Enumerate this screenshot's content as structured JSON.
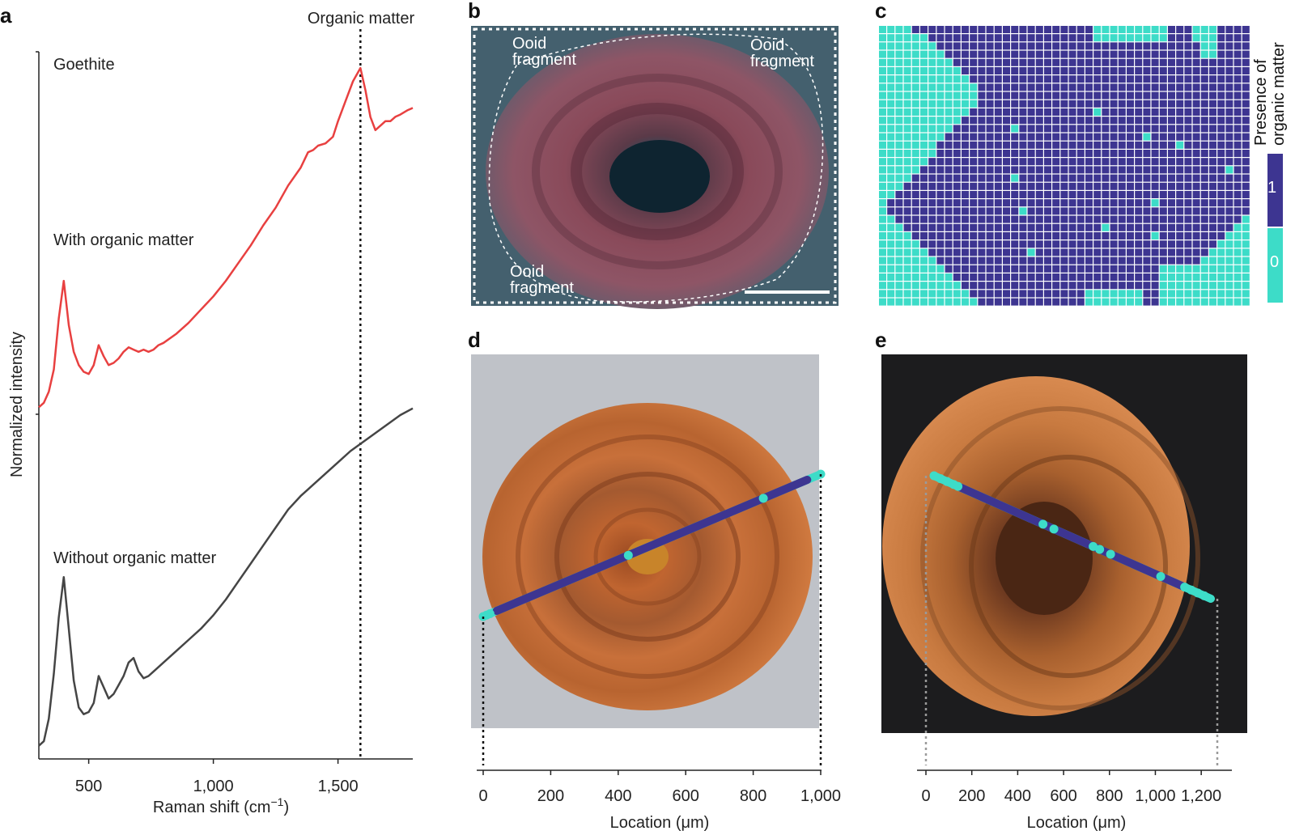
{
  "panel_labels": {
    "a": "a",
    "b": "b",
    "c": "c",
    "d": "d",
    "e": "e"
  },
  "colors": {
    "with_organic": "#e84040",
    "without_organic": "#454545",
    "organic_present": "#3d3591",
    "organic_absent": "#3ddcc8"
  },
  "chart_data": [
    {
      "panel": "a",
      "type": "line",
      "xlabel": "Raman shift (cm",
      "xlabel_sup": "−1",
      "xlabel_close": ")",
      "ylabel": "Normalized intensity",
      "xlim": [
        300,
        1800
      ],
      "xticks": [
        500,
        1000,
        1500
      ],
      "xtick_labels": [
        "500",
        "1,000",
        "1,500"
      ],
      "reference_line": {
        "x": 1590,
        "label": "Organic matter"
      },
      "annotations": [
        "Goethite",
        "With organic matter",
        "Without organic matter"
      ],
      "series": [
        {
          "name": "With organic matter",
          "x": [
            300,
            320,
            340,
            360,
            380,
            400,
            420,
            440,
            460,
            480,
            500,
            520,
            540,
            560,
            580,
            600,
            620,
            640,
            660,
            680,
            700,
            720,
            740,
            760,
            780,
            800,
            850,
            900,
            950,
            1000,
            1050,
            1100,
            1150,
            1200,
            1250,
            1300,
            1350,
            1380,
            1400,
            1420,
            1450,
            1480,
            1500,
            1530,
            1560,
            1590,
            1610,
            1630,
            1650,
            1670,
            1690,
            1710,
            1730,
            1750,
            1780,
            1800
          ],
          "y": [
            0.05,
            0.07,
            0.12,
            0.22,
            0.45,
            0.62,
            0.42,
            0.3,
            0.24,
            0.21,
            0.2,
            0.24,
            0.33,
            0.28,
            0.24,
            0.25,
            0.27,
            0.3,
            0.32,
            0.31,
            0.3,
            0.31,
            0.3,
            0.31,
            0.33,
            0.34,
            0.38,
            0.43,
            0.49,
            0.55,
            0.62,
            0.7,
            0.78,
            0.87,
            0.95,
            1.05,
            1.13,
            1.2,
            1.21,
            1.23,
            1.24,
            1.27,
            1.34,
            1.43,
            1.52,
            1.58,
            1.48,
            1.36,
            1.3,
            1.32,
            1.34,
            1.34,
            1.36,
            1.37,
            1.39,
            1.4
          ]
        },
        {
          "name": "Without organic matter",
          "x": [
            300,
            320,
            340,
            360,
            380,
            400,
            420,
            440,
            460,
            480,
            500,
            520,
            540,
            560,
            580,
            600,
            620,
            640,
            660,
            680,
            700,
            720,
            740,
            760,
            780,
            800,
            850,
            900,
            950,
            1000,
            1050,
            1100,
            1150,
            1200,
            1250,
            1300,
            1350,
            1400,
            1450,
            1500,
            1550,
            1600,
            1650,
            1700,
            1750,
            1800
          ],
          "y": [
            0.03,
            0.05,
            0.15,
            0.35,
            0.6,
            0.78,
            0.55,
            0.32,
            0.2,
            0.17,
            0.18,
            0.22,
            0.34,
            0.29,
            0.24,
            0.26,
            0.3,
            0.34,
            0.4,
            0.42,
            0.36,
            0.33,
            0.34,
            0.36,
            0.38,
            0.4,
            0.45,
            0.5,
            0.55,
            0.61,
            0.68,
            0.76,
            0.84,
            0.92,
            1.0,
            1.08,
            1.14,
            1.19,
            1.24,
            1.29,
            1.34,
            1.38,
            1.42,
            1.46,
            1.5,
            1.53
          ]
        }
      ]
    },
    {
      "panel": "c",
      "type": "heatmap",
      "colorbar_title": [
        "Presence of",
        "organic matter"
      ],
      "colorbar_values": [
        "1",
        "0"
      ],
      "grid_size": [
        45,
        34
      ],
      "present_value": 1,
      "absent_value": 0
    },
    {
      "panel": "d",
      "type": "line",
      "xlabel": "Location (μm)",
      "xlim": [
        0,
        1000
      ],
      "xticks": [
        0,
        200,
        400,
        600,
        800,
        1000
      ],
      "xtick_labels": [
        "0",
        "200",
        "400",
        "600",
        "800",
        "1,000"
      ],
      "absent_points": [
        0,
        10,
        20,
        430,
        830,
        1000
      ],
      "present_segment": [
        40,
        960
      ]
    },
    {
      "panel": "e",
      "type": "line",
      "xlabel": "Location (μm)",
      "xlim": [
        0,
        1270
      ],
      "xticks": [
        0,
        200,
        400,
        600,
        800,
        1000,
        1200
      ],
      "xtick_labels": [
        "0",
        "200",
        "400",
        "600",
        "800",
        "1,000",
        "1,200"
      ],
      "absent_points": [
        0,
        30,
        60,
        90,
        110,
        500,
        550,
        730,
        760,
        810,
        1040,
        1150,
        1180,
        1210,
        1240
      ],
      "present_segment": [
        120,
        1140
      ]
    }
  ],
  "images": {
    "b": {
      "labels": [
        "Ooid\nfragment",
        "Ooid\nfragment",
        "Ooid\nfragment"
      ]
    }
  }
}
